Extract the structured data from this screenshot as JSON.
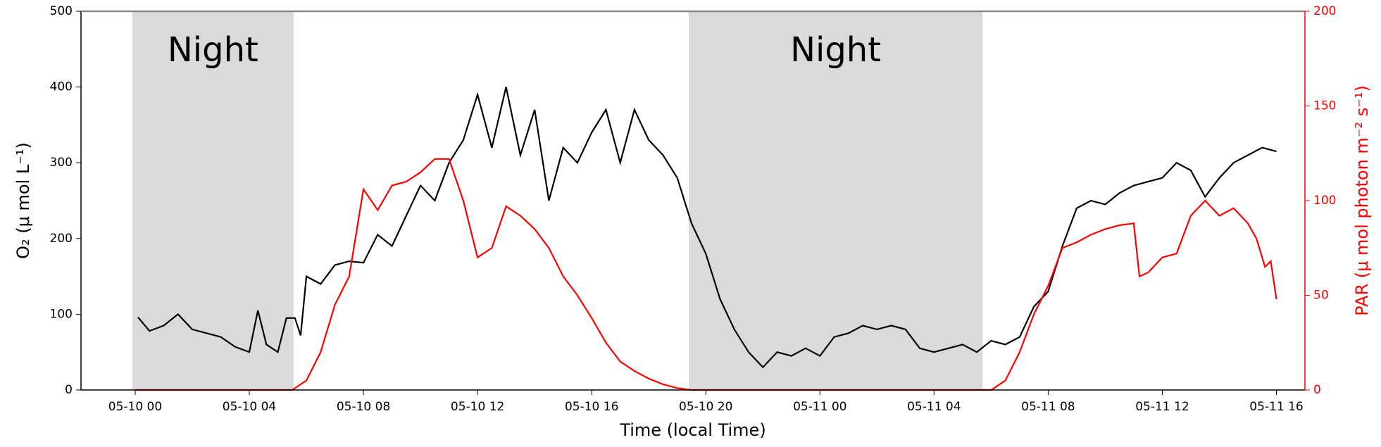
{
  "chart_data": {
    "type": "line",
    "xlabel": "Time (local Time)",
    "ylabel": "O₂ (μ mol L⁻¹)",
    "y2label": "PAR (μ mol photon m⁻² s⁻¹)",
    "y2color": "#ff0000",
    "xlim": [
      -1.9,
      41.0
    ],
    "xticks": [
      {
        "value": 0,
        "label": "05-10 00"
      },
      {
        "value": 4,
        "label": "05-10 04"
      },
      {
        "value": 8,
        "label": "05-10 08"
      },
      {
        "value": 12,
        "label": "05-10 12"
      },
      {
        "value": 16,
        "label": "05-10 16"
      },
      {
        "value": 20,
        "label": "05-10 20"
      },
      {
        "value": 24,
        "label": "05-11 00"
      },
      {
        "value": 28,
        "label": "05-11 04"
      },
      {
        "value": 32,
        "label": "05-11 08"
      },
      {
        "value": 36,
        "label": "05-11 12"
      },
      {
        "value": 40,
        "label": "05-11 16"
      }
    ],
    "ylim": [
      0,
      500
    ],
    "yticks": [
      0,
      100,
      200,
      300,
      400,
      500
    ],
    "y2lim": [
      0,
      200
    ],
    "y2ticks": [
      0,
      50,
      100,
      150,
      200
    ],
    "shaded": [
      {
        "label": "Night",
        "x": [
          -0.1,
          5.55
        ],
        "color": "#dadada"
      },
      {
        "label": "Night",
        "x": [
          19.4,
          29.7
        ],
        "color": "#dadada"
      }
    ],
    "series": [
      {
        "color": "#000000",
        "x": [
          0.1,
          0.5,
          1.0,
          1.5,
          2.0,
          2.5,
          3.0,
          3.5,
          4.0,
          4.3,
          4.6,
          5.0,
          5.3,
          5.6,
          5.8,
          6.0,
          6.5,
          7.0,
          7.5,
          8.0,
          8.5,
          9.0,
          9.5,
          10.0,
          10.5,
          11.0,
          11.5,
          12.0,
          12.5,
          13.0,
          13.5,
          14.0,
          14.5,
          15.0,
          15.5,
          16.0,
          16.5,
          17.0,
          17.5,
          18.0,
          18.5,
          19.0,
          19.5,
          20.0,
          20.5,
          21.0,
          21.5,
          22.0,
          22.5,
          23.0,
          23.5,
          24.0,
          24.5,
          25.0,
          25.5,
          26.0,
          26.5,
          27.0,
          27.5,
          28.0,
          28.5,
          29.0,
          29.5,
          30.0,
          30.5,
          31.0,
          31.5,
          32.0,
          32.5,
          33.0,
          33.5,
          34.0,
          34.5,
          35.0,
          35.5,
          36.0,
          36.5,
          37.0,
          37.5,
          38.0,
          38.5,
          39.0,
          39.5,
          40.0
        ],
        "values": [
          96,
          78,
          85,
          100,
          80,
          75,
          70,
          57,
          50,
          105,
          60,
          50,
          95,
          95,
          72,
          150,
          140,
          165,
          170,
          168,
          205,
          190,
          230,
          270,
          250,
          300,
          330,
          390,
          320,
          400,
          310,
          370,
          250,
          320,
          300,
          340,
          370,
          300,
          370,
          330,
          310,
          280,
          220,
          180,
          120,
          80,
          50,
          30,
          50,
          45,
          55,
          45,
          70,
          75,
          85,
          80,
          85,
          80,
          55,
          50,
          55,
          60,
          50,
          65,
          60,
          70,
          110,
          130,
          190,
          240,
          250,
          245,
          260,
          270,
          275,
          280,
          300,
          290,
          255,
          280,
          300,
          310,
          320,
          315
        ]
      },
      {
        "color": "#ff0000",
        "axis": "y2",
        "x": [
          0.0,
          5.5,
          6.0,
          6.5,
          7.0,
          7.5,
          8.0,
          8.5,
          9.0,
          9.5,
          10.0,
          10.5,
          11.0,
          11.5,
          12.0,
          12.5,
          13.0,
          13.5,
          14.0,
          14.5,
          15.0,
          15.5,
          16.0,
          16.5,
          17.0,
          17.5,
          18.0,
          18.5,
          19.0,
          19.5,
          30.0,
          30.5,
          31.0,
          31.5,
          32.0,
          32.5,
          33.0,
          33.5,
          34.0,
          34.5,
          35.0,
          35.2,
          35.5,
          36.0,
          36.5,
          37.0,
          37.5,
          38.0,
          38.5,
          39.0,
          39.3,
          39.6,
          39.8,
          40.0
        ],
        "values": [
          0,
          0,
          5,
          20,
          45,
          60,
          106,
          95,
          108,
          110,
          115,
          122,
          122,
          100,
          70,
          75,
          97,
          92,
          85,
          75,
          60,
          50,
          38,
          25,
          15,
          10,
          6,
          3,
          1,
          0,
          0,
          5,
          20,
          40,
          55,
          75,
          78,
          82,
          85,
          87,
          88,
          60,
          62,
          70,
          72,
          92,
          100,
          92,
          96,
          88,
          80,
          65,
          68,
          48
        ]
      }
    ]
  }
}
